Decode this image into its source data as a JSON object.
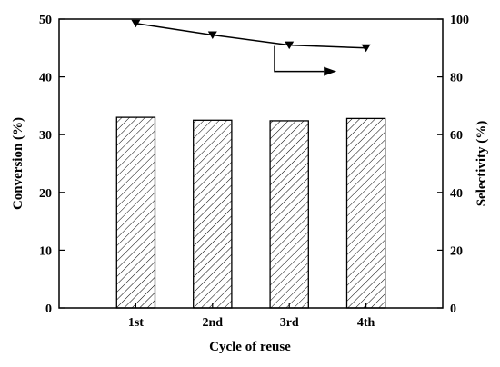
{
  "chart_data": {
    "type": "bar",
    "title": "",
    "xlabel": "Cycle of reuse",
    "ylabel": "Conversion (%)",
    "y2label": "Selectivity (%)",
    "categories": [
      "1st",
      "2nd",
      "3rd",
      "4th"
    ],
    "ylim": [
      0,
      50
    ],
    "y2lim": [
      0,
      100
    ],
    "yticks": [
      "0",
      "10",
      "20",
      "30",
      "40",
      "50"
    ],
    "y2ticks": [
      "0",
      "20",
      "40",
      "60",
      "80",
      "100"
    ],
    "series": [
      {
        "name": "",
        "type": "bar",
        "axis": "left",
        "pattern": "diagonal-hatch",
        "values": [
          33.0,
          32.5,
          32.4,
          32.8
        ]
      },
      {
        "name": "",
        "type": "line",
        "axis": "right",
        "marker": "down-triangle",
        "values": [
          98.5,
          94.5,
          91.0,
          90.0
        ]
      }
    ],
    "annotation": {
      "type": "arrow",
      "points_to": "right-axis",
      "attached_series": 1
    },
    "grid": false,
    "legend": "none"
  }
}
